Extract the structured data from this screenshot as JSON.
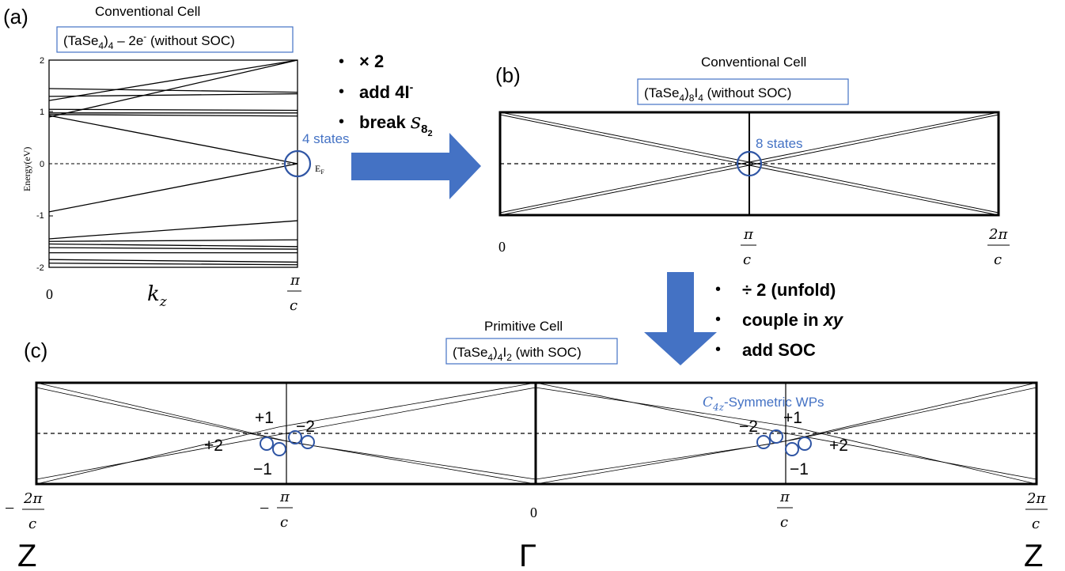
{
  "colors": {
    "accent": "#4472c4",
    "line": "#000000",
    "box_border": "#4472c4"
  },
  "panel_a": {
    "label": "(a)",
    "title": "Conventional Cell",
    "formula": {
      "main": "(TaSe",
      "sub": "4",
      "close": ")",
      "sub2": "4",
      "rest": " – 2e",
      "sup": "-",
      "tail": " (without SOC)"
    },
    "ylabel": "Energy(eV)",
    "yticks": [
      "2",
      "1",
      "0",
      "-1",
      "-2"
    ],
    "xtick_left": "0",
    "xlabel": "k",
    "xlabel_sub": "z",
    "xtick_right_num": "π",
    "xtick_right_den": "c",
    "fermi_label": "E",
    "fermi_sub": "F",
    "states_label": "4 states"
  },
  "steps_1": {
    "item1": "× 2",
    "item2_main": "add 4I",
    "item2_sup": "-",
    "item3_main": "break ",
    "item3_sym": "s",
    "item3_sub": "8",
    "item3_subsub": "2"
  },
  "panel_b": {
    "label": "(b)",
    "title": "Conventional Cell",
    "formula": {
      "main": "(TaSe",
      "sub": "4",
      "close": ")",
      "sub2": "8",
      "rest": "I",
      "sub3": "4",
      "tail": " (without SOC)"
    },
    "states_label": "8 states",
    "xtick_left": "0",
    "xtick_mid_num": "π",
    "xtick_mid_den": "c",
    "xtick_right_num": "2π",
    "xtick_right_den": "c"
  },
  "steps_2": {
    "item1": "÷ 2 (unfold)",
    "item2_main": "couple in ",
    "item2_em": "xy",
    "item3": "add SOC"
  },
  "panel_c": {
    "label": "(c)",
    "title": "Primitive Cell",
    "formula": {
      "main": "(TaSe",
      "sub": "4",
      "close": ")",
      "sub2": "4",
      "rest": "I",
      "sub3": "2",
      "tail": " (with SOC)"
    },
    "wp_label_sym": "C",
    "wp_label_sub": "4z",
    "wp_label_rest": "-Symmetric WPs",
    "charges_left": [
      "+1",
      "−2",
      "+2",
      "−1"
    ],
    "charges_right": [
      "−2",
      "+1",
      "+2",
      "−1"
    ],
    "xticks": {
      "t1_num": "2π",
      "t1_den": "c",
      "t1_sign": "−",
      "t2_num": "π",
      "t2_den": "c",
      "t2_sign": "−",
      "t3": "0",
      "t4_num": "π",
      "t4_den": "c",
      "t5_num": "2π",
      "t5_den": "c"
    },
    "points": [
      "Z",
      "Γ",
      "Z"
    ]
  },
  "chart_data": {
    "type": "line",
    "title": "",
    "xlabel": "k_z",
    "ylabel": "Energy(eV)",
    "ylim": [
      -2,
      2
    ],
    "x": [
      0,
      1
    ],
    "xtick_labels": [
      "0",
      "π/c"
    ],
    "series": [
      {
        "values": [
          1.45,
          1.38
        ]
      },
      {
        "values": [
          1.3,
          1.35
        ]
      },
      {
        "values": [
          1.22,
          2.0
        ]
      },
      {
        "values": [
          1.05,
          1.03
        ]
      },
      {
        "values": [
          0.98,
          0.98
        ]
      },
      {
        "values": [
          0.95,
          0.92
        ]
      },
      {
        "values": [
          0.93,
          0.0
        ]
      },
      {
        "values": [
          0.9,
          2.0
        ]
      },
      {
        "values": [
          -0.93,
          0.0
        ]
      },
      {
        "values": [
          -1.45,
          -1.1
        ]
      },
      {
        "values": [
          -1.5,
          -1.47
        ]
      },
      {
        "values": [
          -1.55,
          -1.6
        ]
      },
      {
        "values": [
          -1.62,
          -1.65
        ]
      },
      {
        "values": [
          -1.72,
          -1.72
        ]
      },
      {
        "values": [
          -1.85,
          -1.9
        ]
      },
      {
        "values": [
          -1.92,
          -1.95
        ]
      }
    ],
    "fermi_level": 0
  }
}
